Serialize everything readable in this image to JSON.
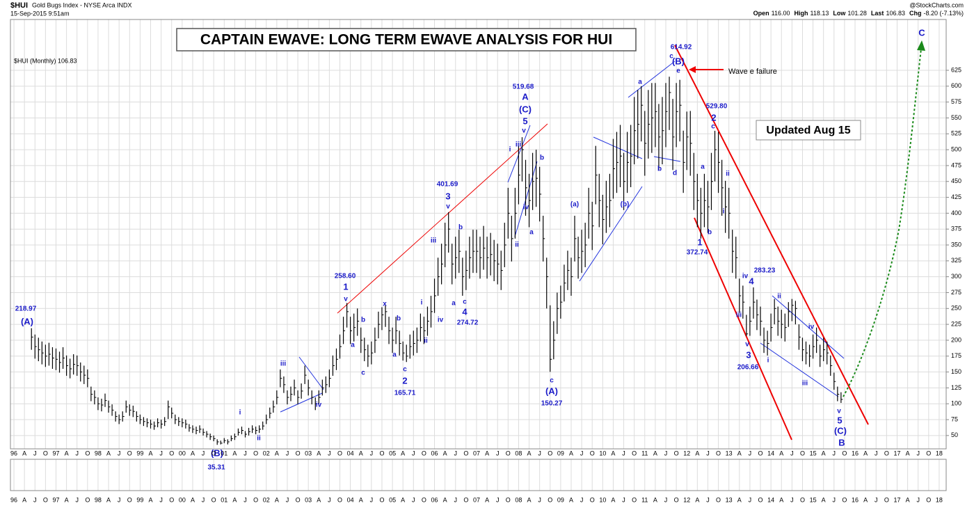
{
  "header": {
    "symbol": "$HUI",
    "name": "Gold Bugs Index - NYSE Arca INDX",
    "date": "15-Sep-2015 9:51am",
    "source": "@StockCharts.com",
    "quote": [
      {
        "label": "Open",
        "value": "116.00"
      },
      {
        "label": "High",
        "value": "118.13"
      },
      {
        "label": "Low",
        "value": "101.28"
      },
      {
        "label": "Last",
        "value": "106.83"
      },
      {
        "label": "Chg",
        "value": "-8.20 (-7.13%)"
      }
    ]
  },
  "chart_data": {
    "type": "ohlc",
    "title": "CAPTAIN EWAVE: LONG TERM EWAVE ANALYSIS FOR HUI",
    "legend": "$HUI (Monthly) 106.83",
    "note": "Updated Aug 15",
    "callout": "Wave e failure",
    "color": "#000000",
    "grid": true,
    "x": [
      "1996-06",
      "1996-07",
      "1996-08",
      "1996-09",
      "1996-10",
      "1996-11",
      "1996-12",
      "1997-01",
      "1997-02",
      "1997-03",
      "1997-04",
      "1997-05",
      "1997-06",
      "1997-07",
      "1997-08",
      "1997-09",
      "1997-10",
      "1997-11",
      "1997-12",
      "1998-01",
      "1998-02",
      "1998-03",
      "1998-04",
      "1998-05",
      "1998-06",
      "1998-07",
      "1998-08",
      "1998-09",
      "1998-10",
      "1998-11",
      "1998-12",
      "1999-01",
      "1999-02",
      "1999-03",
      "1999-04",
      "1999-05",
      "1999-06",
      "1999-07",
      "1999-08",
      "1999-09",
      "1999-10",
      "1999-11",
      "1999-12",
      "2000-01",
      "2000-02",
      "2000-03",
      "2000-04",
      "2000-05",
      "2000-06",
      "2000-07",
      "2000-08",
      "2000-09",
      "2000-10",
      "2000-11",
      "2000-12",
      "2001-01",
      "2001-02",
      "2001-03",
      "2001-04",
      "2001-05",
      "2001-06",
      "2001-07",
      "2001-08",
      "2001-09",
      "2001-10",
      "2001-11",
      "2001-12",
      "2002-01",
      "2002-02",
      "2002-03",
      "2002-04",
      "2002-05",
      "2002-06",
      "2002-07",
      "2002-08",
      "2002-09",
      "2002-10",
      "2002-11",
      "2002-12",
      "2003-01",
      "2003-02",
      "2003-03",
      "2003-04",
      "2003-05",
      "2003-06",
      "2003-07",
      "2003-08",
      "2003-09",
      "2003-10",
      "2003-11",
      "2003-12",
      "2004-01",
      "2004-02",
      "2004-03",
      "2004-04",
      "2004-05",
      "2004-06",
      "2004-07",
      "2004-08",
      "2004-09",
      "2004-10",
      "2004-11",
      "2004-12",
      "2005-01",
      "2005-02",
      "2005-03",
      "2005-04",
      "2005-05",
      "2005-06",
      "2005-07",
      "2005-08",
      "2005-09",
      "2005-10",
      "2005-11",
      "2005-12",
      "2006-01",
      "2006-02",
      "2006-03",
      "2006-04",
      "2006-05",
      "2006-06",
      "2006-07",
      "2006-08",
      "2006-09",
      "2006-10",
      "2006-11",
      "2006-12",
      "2007-01",
      "2007-02",
      "2007-03",
      "2007-04",
      "2007-05",
      "2007-06",
      "2007-07",
      "2007-08",
      "2007-09",
      "2007-10",
      "2007-11",
      "2007-12",
      "2008-01",
      "2008-02",
      "2008-03",
      "2008-04",
      "2008-05",
      "2008-06",
      "2008-07",
      "2008-08",
      "2008-09",
      "2008-10",
      "2008-11",
      "2008-12",
      "2009-01",
      "2009-02",
      "2009-03",
      "2009-04",
      "2009-05",
      "2009-06",
      "2009-07",
      "2009-08",
      "2009-09",
      "2009-10",
      "2009-11",
      "2009-12",
      "2010-01",
      "2010-02",
      "2010-03",
      "2010-04",
      "2010-05",
      "2010-06",
      "2010-07",
      "2010-08",
      "2010-09",
      "2010-10",
      "2010-11",
      "2010-12",
      "2011-01",
      "2011-02",
      "2011-03",
      "2011-04",
      "2011-05",
      "2011-06",
      "2011-07",
      "2011-08",
      "2011-09",
      "2011-10",
      "2011-11",
      "2011-12",
      "2012-01",
      "2012-02",
      "2012-03",
      "2012-04",
      "2012-05",
      "2012-06",
      "2012-07",
      "2012-08",
      "2012-09",
      "2012-10",
      "2012-11",
      "2012-12",
      "2013-01",
      "2013-02",
      "2013-03",
      "2013-04",
      "2013-05",
      "2013-06",
      "2013-07",
      "2013-08",
      "2013-09",
      "2013-10",
      "2013-11",
      "2013-12",
      "2014-01",
      "2014-02",
      "2014-03",
      "2014-04",
      "2014-05",
      "2014-06",
      "2014-07",
      "2014-08",
      "2014-09",
      "2014-10",
      "2014-11",
      "2014-12",
      "2015-01",
      "2015-02",
      "2015-03",
      "2015-04",
      "2015-05",
      "2015-06",
      "2015-07",
      "2015-08",
      "2015-09"
    ],
    "high": [
      218.97,
      209,
      204,
      198,
      193,
      196,
      189,
      187,
      182,
      189,
      176,
      171,
      178,
      176,
      165,
      160,
      154,
      127,
      121,
      110,
      108,
      116,
      105,
      99,
      88,
      83,
      88,
      105,
      99,
      97,
      88,
      83,
      79,
      77,
      75,
      72,
      77,
      75,
      79,
      105,
      94,
      83,
      79,
      77,
      75,
      68,
      66,
      64,
      66,
      61,
      57,
      53,
      50,
      44,
      42,
      46,
      44,
      50,
      53,
      61,
      64,
      57,
      62,
      66,
      64,
      66,
      72,
      83,
      94,
      105,
      121,
      154,
      143,
      121,
      127,
      138,
      121,
      132,
      160,
      138,
      121,
      110,
      121,
      138,
      143,
      154,
      176,
      187,
      209,
      237,
      258.6,
      237,
      242,
      250,
      220,
      204,
      193,
      198,
      220,
      245,
      252,
      255,
      237,
      220,
      237,
      215,
      198,
      193,
      209,
      215,
      220,
      242,
      237,
      253,
      270,
      297,
      330,
      352,
      385,
      401.69,
      352,
      363,
      374,
      330,
      341,
      363,
      374,
      374,
      363,
      380,
      363,
      369,
      358,
      352,
      341,
      385,
      440,
      396,
      440,
      506,
      519.68,
      484,
      462,
      495,
      500,
      473,
      396,
      330,
      255,
      230,
      275,
      286,
      319,
      341,
      330,
      396,
      363,
      374,
      385,
      440,
      418,
      506,
      462,
      429,
      451,
      462,
      517,
      528,
      539,
      495,
      528,
      539,
      583,
      594,
      600,
      561,
      594,
      605,
      605,
      572,
      583,
      605,
      614.92,
      580,
      605,
      610,
      530,
      560,
      561,
      495,
      462,
      440,
      462,
      451,
      495,
      529.8,
      528,
      484,
      451,
      440,
      374,
      363,
      297,
      286,
      240,
      253,
      283.23,
      264,
      253,
      220,
      215,
      242,
      265,
      253,
      248,
      242,
      260,
      265,
      262,
      225,
      204,
      198,
      193,
      209,
      220,
      193,
      204,
      198,
      176,
      149,
      127,
      118.13
    ],
    "low": [
      185,
      171,
      167,
      162,
      158,
      160,
      155,
      153,
      149,
      155,
      144,
      140,
      146,
      144,
      135,
      131,
      126,
      104,
      99,
      90,
      88,
      95,
      86,
      81,
      72,
      68,
      72,
      86,
      81,
      79,
      72,
      68,
      65,
      63,
      61,
      59,
      63,
      61,
      65,
      76,
      77,
      68,
      65,
      63,
      61,
      56,
      54,
      52,
      54,
      50,
      47,
      43,
      41,
      35.31,
      36,
      38,
      36,
      41,
      43,
      50,
      52,
      47,
      50,
      54,
      52,
      54,
      59,
      68,
      77,
      86,
      99,
      126,
      117,
      99,
      104,
      113,
      99,
      108,
      131,
      113,
      99,
      90,
      99,
      113,
      117,
      126,
      144,
      153,
      171,
      194,
      220,
      194,
      198,
      207,
      180,
      167,
      158,
      162,
      180,
      203,
      216,
      221,
      194,
      180,
      194,
      176,
      168,
      165.71,
      171,
      176,
      180,
      198,
      194,
      207,
      220,
      243,
      270,
      288,
      315,
      338,
      288,
      297,
      306,
      270,
      279,
      297,
      306,
      306,
      297,
      311,
      297,
      302,
      293,
      288,
      279,
      315,
      360,
      324,
      360,
      414,
      450,
      396,
      378,
      405,
      410,
      387,
      324,
      250,
      150.27,
      170,
      210,
      234,
      261,
      279,
      270,
      324,
      297,
      306,
      315,
      360,
      342,
      414,
      378,
      351,
      369,
      378,
      423,
      432,
      441,
      405,
      432,
      441,
      477,
      486,
      513,
      459,
      486,
      495,
      504,
      468,
      477,
      504,
      531,
      468,
      504,
      513,
      432,
      468,
      459,
      405,
      378,
      360,
      378,
      369,
      405,
      450,
      432,
      396,
      369,
      360,
      306,
      297,
      243,
      234,
      206.66,
      207,
      234,
      216,
      207,
      180,
      176,
      198,
      225,
      207,
      203,
      198,
      221,
      230,
      225,
      185,
      167,
      162,
      158,
      171,
      180,
      158,
      167,
      162,
      144,
      122,
      104,
      101.28
    ],
    "close": [
      205,
      190,
      185,
      180,
      175,
      178,
      172,
      170,
      165,
      172,
      160,
      155,
      162,
      160,
      150,
      145,
      140,
      115,
      110,
      100,
      98,
      105,
      95,
      90,
      80,
      75,
      80,
      95,
      90,
      88,
      80,
      75,
      72,
      70,
      68,
      65,
      70,
      68,
      72,
      95,
      85,
      75,
      72,
      70,
      68,
      62,
      60,
      58,
      60,
      55,
      52,
      48,
      45,
      40,
      38,
      42,
      40,
      45,
      48,
      55,
      58,
      52,
      56,
      60,
      58,
      60,
      65,
      75,
      85,
      95,
      110,
      140,
      130,
      110,
      115,
      125,
      110,
      120,
      145,
      125,
      110,
      100,
      110,
      125,
      130,
      140,
      160,
      170,
      190,
      215,
      245,
      215,
      220,
      230,
      200,
      185,
      175,
      180,
      200,
      225,
      240,
      245,
      215,
      200,
      215,
      195,
      180,
      175,
      190,
      195,
      200,
      220,
      215,
      230,
      245,
      270,
      300,
      320,
      350,
      375,
      320,
      330,
      340,
      300,
      310,
      330,
      340,
      340,
      330,
      345,
      330,
      335,
      325,
      320,
      310,
      350,
      400,
      360,
      400,
      460,
      500,
      440,
      420,
      450,
      455,
      430,
      360,
      300,
      170,
      200,
      250,
      260,
      290,
      310,
      300,
      360,
      330,
      340,
      350,
      400,
      380,
      460,
      420,
      390,
      410,
      420,
      470,
      480,
      490,
      450,
      480,
      490,
      530,
      540,
      570,
      510,
      540,
      550,
      560,
      520,
      530,
      560,
      590,
      520,
      560,
      570,
      480,
      520,
      510,
      450,
      420,
      400,
      420,
      410,
      450,
      500,
      480,
      440,
      410,
      400,
      340,
      330,
      270,
      260,
      210,
      230,
      260,
      240,
      230,
      200,
      195,
      220,
      250,
      230,
      225,
      220,
      245,
      255,
      250,
      205,
      185,
      180,
      175,
      190,
      200,
      175,
      185,
      180,
      160,
      135,
      115,
      106.83
    ],
    "ylim": [
      29,
      705
    ],
    "yticks": [
      50,
      75,
      100,
      125,
      150,
      175,
      200,
      225,
      250,
      275,
      300,
      325,
      350,
      375,
      400,
      425,
      450,
      475,
      500,
      525,
      550,
      575,
      600,
      625
    ],
    "xlim": [
      "1995-12",
      "2018-03"
    ],
    "xticks": [
      {
        "value": "1996-01",
        "label": "96"
      },
      {
        "value": "1996-04",
        "label": "A"
      },
      {
        "value": "1996-07",
        "label": "J"
      },
      {
        "value": "1996-10",
        "label": "O"
      },
      {
        "value": "1997-01",
        "label": "97"
      },
      {
        "value": "1997-04",
        "label": "A"
      },
      {
        "value": "1997-07",
        "label": "J"
      },
      {
        "value": "1997-10",
        "label": "O"
      },
      {
        "value": "1998-01",
        "label": "98"
      },
      {
        "value": "1998-04",
        "label": "A"
      },
      {
        "value": "1998-07",
        "label": "J"
      },
      {
        "value": "1998-10",
        "label": "O"
      },
      {
        "value": "1999-01",
        "label": "99"
      },
      {
        "value": "1999-04",
        "label": "A"
      },
      {
        "value": "1999-07",
        "label": "J"
      },
      {
        "value": "1999-10",
        "label": "O"
      },
      {
        "value": "2000-01",
        "label": "00"
      },
      {
        "value": "2000-04",
        "label": "A"
      },
      {
        "value": "2000-07",
        "label": "J"
      },
      {
        "value": "2000-10",
        "label": "O"
      },
      {
        "value": "2001-01",
        "label": "01"
      },
      {
        "value": "2001-04",
        "label": "A"
      },
      {
        "value": "2001-07",
        "label": "J"
      },
      {
        "value": "2001-10",
        "label": "O"
      },
      {
        "value": "2002-01",
        "label": "02"
      },
      {
        "value": "2002-04",
        "label": "A"
      },
      {
        "value": "2002-07",
        "label": "J"
      },
      {
        "value": "2002-10",
        "label": "O"
      },
      {
        "value": "2003-01",
        "label": "03"
      },
      {
        "value": "2003-04",
        "label": "A"
      },
      {
        "value": "2003-07",
        "label": "J"
      },
      {
        "value": "2003-10",
        "label": "O"
      },
      {
        "value": "2004-01",
        "label": "04"
      },
      {
        "value": "2004-04",
        "label": "A"
      },
      {
        "value": "2004-07",
        "label": "J"
      },
      {
        "value": "2004-10",
        "label": "O"
      },
      {
        "value": "2005-01",
        "label": "05"
      },
      {
        "value": "2005-04",
        "label": "A"
      },
      {
        "value": "2005-07",
        "label": "J"
      },
      {
        "value": "2005-10",
        "label": "O"
      },
      {
        "value": "2006-01",
        "label": "06"
      },
      {
        "value": "2006-04",
        "label": "A"
      },
      {
        "value": "2006-07",
        "label": "J"
      },
      {
        "value": "2006-10",
        "label": "O"
      },
      {
        "value": "2007-01",
        "label": "07"
      },
      {
        "value": "2007-04",
        "label": "A"
      },
      {
        "value": "2007-07",
        "label": "J"
      },
      {
        "value": "2007-10",
        "label": "O"
      },
      {
        "value": "2008-01",
        "label": "08"
      },
      {
        "value": "2008-04",
        "label": "A"
      },
      {
        "value": "2008-07",
        "label": "J"
      },
      {
        "value": "2008-10",
        "label": "O"
      },
      {
        "value": "2009-01",
        "label": "09"
      },
      {
        "value": "2009-04",
        "label": "A"
      },
      {
        "value": "2009-07",
        "label": "J"
      },
      {
        "value": "2009-10",
        "label": "O"
      },
      {
        "value": "2010-01",
        "label": "10"
      },
      {
        "value": "2010-04",
        "label": "A"
      },
      {
        "value": "2010-07",
        "label": "J"
      },
      {
        "value": "2010-10",
        "label": "O"
      },
      {
        "value": "2011-01",
        "label": "11"
      },
      {
        "value": "2011-04",
        "label": "A"
      },
      {
        "value": "2011-07",
        "label": "J"
      },
      {
        "value": "2011-10",
        "label": "O"
      },
      {
        "value": "2012-01",
        "label": "12"
      },
      {
        "value": "2012-04",
        "label": "A"
      },
      {
        "value": "2012-07",
        "label": "J"
      },
      {
        "value": "2012-10",
        "label": "O"
      },
      {
        "value": "2013-01",
        "label": "13"
      },
      {
        "value": "2013-04",
        "label": "A"
      },
      {
        "value": "2013-07",
        "label": "J"
      },
      {
        "value": "2013-10",
        "label": "O"
      },
      {
        "value": "2014-01",
        "label": "14"
      },
      {
        "value": "2014-04",
        "label": "A"
      },
      {
        "value": "2014-07",
        "label": "J"
      },
      {
        "value": "2014-10",
        "label": "O"
      },
      {
        "value": "2015-01",
        "label": "15"
      },
      {
        "value": "2015-04",
        "label": "A"
      },
      {
        "value": "2015-07",
        "label": "J"
      },
      {
        "value": "2015-10",
        "label": "O"
      },
      {
        "value": "2016-01",
        "label": "16"
      },
      {
        "value": "2016-04",
        "label": "A"
      },
      {
        "value": "2016-07",
        "label": "J"
      },
      {
        "value": "2016-10",
        "label": "O"
      },
      {
        "value": "2017-01",
        "label": "17"
      },
      {
        "value": "2017-04",
        "label": "A"
      },
      {
        "value": "2017-07",
        "label": "J"
      },
      {
        "value": "2017-10",
        "label": "O"
      },
      {
        "value": "2018-01",
        "label": "18"
      }
    ],
    "annotations": [
      "218.97",
      "(A)",
      "(B)",
      "35.31",
      "i",
      "ii",
      "iii",
      "iv",
      "258.60",
      "1",
      "v",
      "a",
      "b",
      "c",
      "x",
      "b",
      "a",
      "c",
      "2",
      "165.71",
      "i",
      "ii",
      "iii",
      "iv",
      "a",
      "b",
      "c",
      "4",
      "274.72",
      "401.69",
      "3",
      "v",
      "519.68",
      "A",
      "(C)",
      "5",
      "v",
      "iii",
      "i",
      "ii",
      "iv",
      "a",
      "b",
      "c",
      "(A)",
      "150.27",
      "(a)",
      "(b)",
      "614.92",
      "c",
      "(B)",
      "e",
      "a",
      "b",
      "d",
      "529.80",
      "2",
      "c",
      "a",
      "ii",
      "i",
      "b",
      "1",
      "372.74",
      "iv",
      "4",
      "283.23",
      "iii",
      "v",
      "3",
      "206.66",
      "i",
      "ii",
      "iii",
      "iv",
      "v",
      "5",
      "(C)",
      "B",
      "C"
    ]
  }
}
